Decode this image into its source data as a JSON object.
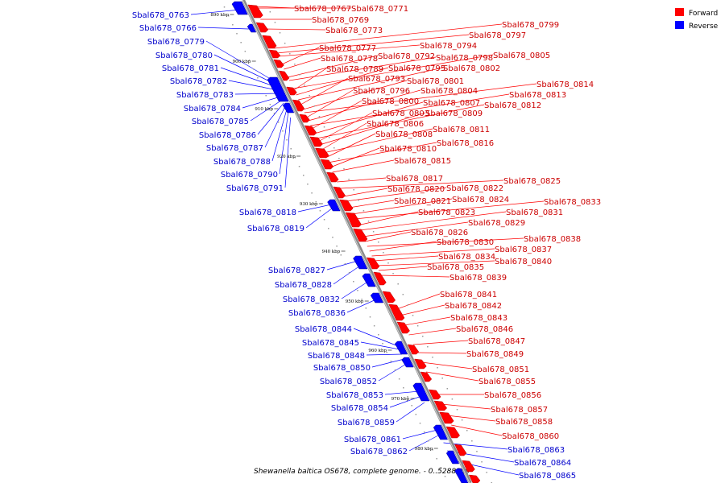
{
  "caption": "Shewanella baltica OS678, complete genome. - 0..5288069",
  "legend": [
    {
      "label": "Forward",
      "color": "#ff0000"
    },
    {
      "label": "Reverse",
      "color": "#0000ff"
    }
  ],
  "ticks": [
    "890 kbp",
    "900 kbp",
    "910 kbp",
    "920 kbp",
    "930 kbp",
    "940 kbp",
    "950 kbp",
    "960 kbp",
    "970 kbp",
    "980 kbp"
  ],
  "forward_genes": [
    "Sbal678_0767",
    "Sbal678_0771",
    "Sbal678_0769",
    "Sbal678_0773",
    "Sbal678_0799",
    "Sbal678_0797",
    "Sbal678_0777",
    "Sbal678_0794",
    "Sbal678_0778",
    "Sbal678_0792",
    "Sbal678_0798",
    "Sbal678_0805",
    "Sbal678_0789",
    "Sbal678_0795",
    "Sbal678_0802",
    "Sbal678_0793",
    "Sbal678_0801",
    "Sbal678_0814",
    "Sbal678_0796",
    "Sbal678_0804",
    "Sbal678_0813",
    "Sbal678_0800",
    "Sbal678_0807",
    "Sbal678_0812",
    "Sbal678_0803",
    "Sbal678_0809",
    "Sbal678_0806",
    "Sbal678_0811",
    "Sbal678_0808",
    "Sbal678_0816",
    "Sbal678_0810",
    "Sbal678_0815",
    "Sbal678_0817",
    "Sbal678_0825",
    "Sbal678_0820",
    "Sbal678_0822",
    "Sbal678_0821",
    "Sbal678_0824",
    "Sbal678_0833",
    "Sbal678_0823",
    "Sbal678_0831",
    "Sbal678_0829",
    "Sbal678_0826",
    "Sbal678_0838",
    "Sbal678_0830",
    "Sbal678_0837",
    "Sbal678_0834",
    "Sbal678_0840",
    "Sbal678_0835",
    "Sbal678_0839",
    "Sbal678_0841",
    "Sbal678_0842",
    "Sbal678_0843",
    "Sbal678_0846",
    "Sbal678_0847",
    "Sbal678_0849",
    "Sbal678_0851",
    "Sbal678_0855",
    "Sbal678_0856",
    "Sbal678_0857",
    "Sbal678_0858",
    "Sbal678_0860"
  ],
  "reverse_genes": [
    "Sbal678_0763",
    "Sbal678_0766",
    "Sbal678_0779",
    "Sbal678_0780",
    "Sbal678_0781",
    "Sbal678_0782",
    "Sbal678_0783",
    "Sbal678_0784",
    "Sbal678_0785",
    "Sbal678_0786",
    "Sbal678_0787",
    "Sbal678_0788",
    "Sbal678_0790",
    "Sbal678_0791",
    "Sbal678_0818",
    "Sbal678_0819",
    "Sbal678_0827",
    "Sbal678_0828",
    "Sbal678_0832",
    "Sbal678_0836",
    "Sbal678_0844",
    "Sbal678_0845",
    "Sbal678_0848",
    "Sbal678_0850",
    "Sbal678_0852",
    "Sbal678_0853",
    "Sbal678_0854",
    "Sbal678_0859",
    "Sbal678_0861",
    "Sbal678_0862",
    "Sbal678_0863",
    "Sbal678_0864",
    "Sbal678_0865"
  ]
}
